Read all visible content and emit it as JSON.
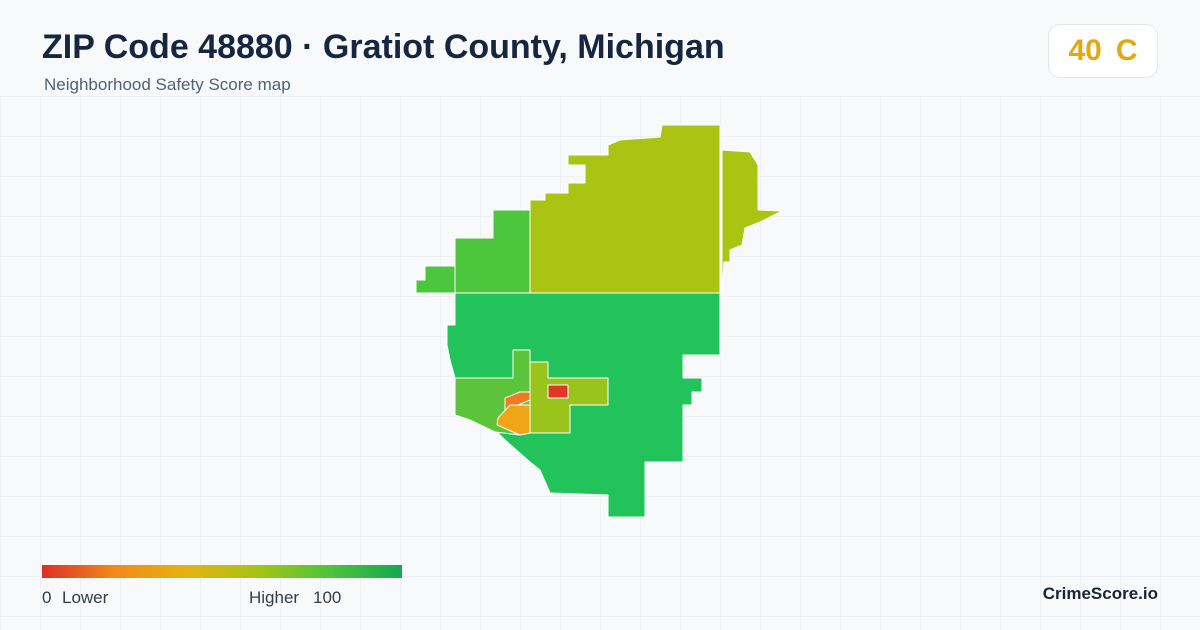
{
  "header": {
    "title": "ZIP Code 48880 · Gratiot County, Michigan",
    "subtitle": "Neighborhood Safety Score map"
  },
  "score": {
    "value": 40,
    "grade": "C"
  },
  "legend": {
    "min": 0,
    "min_label": "Lower",
    "max_label": "Higher",
    "max": 100
  },
  "brand": "CrimeScore.io"
}
